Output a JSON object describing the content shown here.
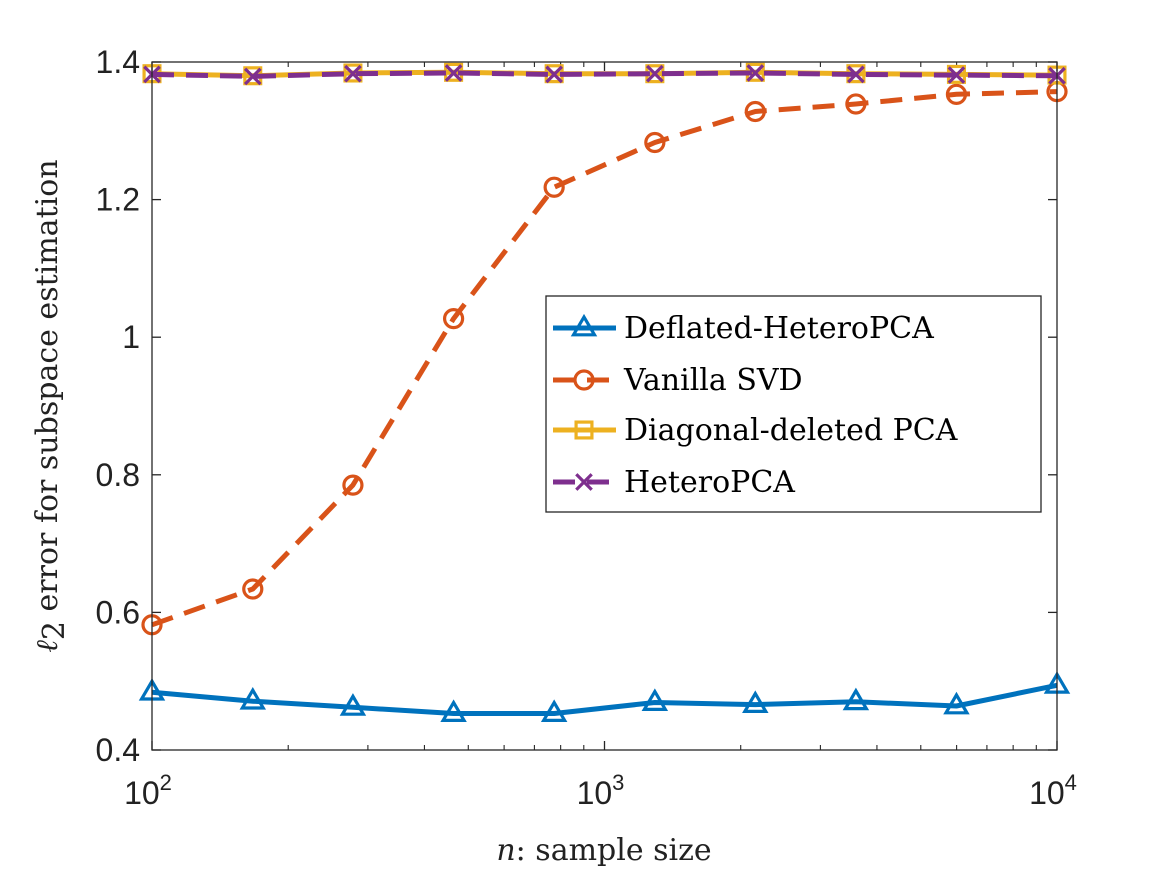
{
  "chart_data": {
    "type": "line",
    "xscale": "log",
    "x": [
      100,
      167,
      278,
      464,
      774,
      1292,
      2154,
      3594,
      5995,
      10000
    ],
    "xlim": [
      100,
      10000
    ],
    "ylim": [
      0.4,
      1.4
    ],
    "xticks": [
      {
        "base": "10",
        "exp": "2"
      },
      {
        "base": "10",
        "exp": "3"
      },
      {
        "base": "10",
        "exp": "4"
      }
    ],
    "yticks": [
      "0.4",
      "0.6",
      "0.8",
      "1",
      "1.2",
      "1.4"
    ],
    "ytick_values": [
      0.4,
      0.6,
      0.8,
      1.0,
      1.2,
      1.4
    ],
    "xlabel_var": "n",
    "xlabel_rest": ": sample size",
    "ylabel_var": "ℓ",
    "ylabel_sub": "2",
    "ylabel_rest": " error for subspace estimation",
    "legend_position": "center-right",
    "series": [
      {
        "name": "Deflated-HeteroPCA",
        "color": "#0072BD",
        "marker": "triangle",
        "dash": "solid",
        "values": [
          0.484,
          0.471,
          0.462,
          0.453,
          0.453,
          0.469,
          0.466,
          0.47,
          0.464,
          0.494
        ]
      },
      {
        "name": "Vanilla SVD",
        "color": "#D95319",
        "marker": "circle",
        "dash": "dashed",
        "values": [
          0.582,
          0.634,
          0.785,
          1.027,
          1.218,
          1.283,
          1.328,
          1.339,
          1.353,
          1.357
        ]
      },
      {
        "name": "Diagonal-deleted PCA",
        "color": "#EDB120",
        "marker": "square",
        "dash": "solid",
        "values": [
          1.383,
          1.38,
          1.384,
          1.385,
          1.383,
          1.383,
          1.385,
          1.383,
          1.382,
          1.381
        ]
      },
      {
        "name": "HeteroPCA",
        "color": "#7E2F8E",
        "marker": "x",
        "dash": "dashed",
        "values": [
          1.382,
          1.379,
          1.383,
          1.384,
          1.382,
          1.383,
          1.384,
          1.382,
          1.381,
          1.38
        ]
      }
    ]
  }
}
